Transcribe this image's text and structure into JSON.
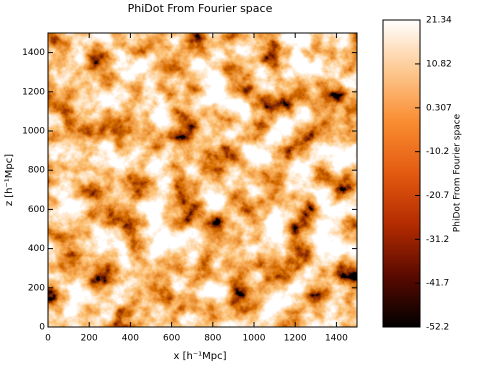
{
  "chart_data": {
    "type": "heatmap",
    "title": "PhiDot From Fourier space",
    "xlabel": "x [h⁻¹Mpc]",
    "ylabel": "z [h⁻¹Mpc]",
    "xlim": [
      0,
      1500
    ],
    "ylim": [
      0,
      1500
    ],
    "xticks": [
      0,
      200,
      400,
      600,
      800,
      1000,
      1200,
      1400
    ],
    "yticks": [
      0,
      200,
      400,
      600,
      800,
      1000,
      1200,
      1400
    ],
    "colorbar": {
      "label": "PhiDot From Fourier space",
      "lim": [
        -52.2,
        21.34
      ],
      "ticks": [
        21.34,
        10.82,
        0.307,
        -10.2,
        -20.7,
        -31.2,
        -41.7,
        -52.2
      ]
    },
    "colormap": [
      "#000000",
      "#5a0a00",
      "#b32b00",
      "#e35a10",
      "#f98c30",
      "#fdc890",
      "#ffffff"
    ]
  }
}
